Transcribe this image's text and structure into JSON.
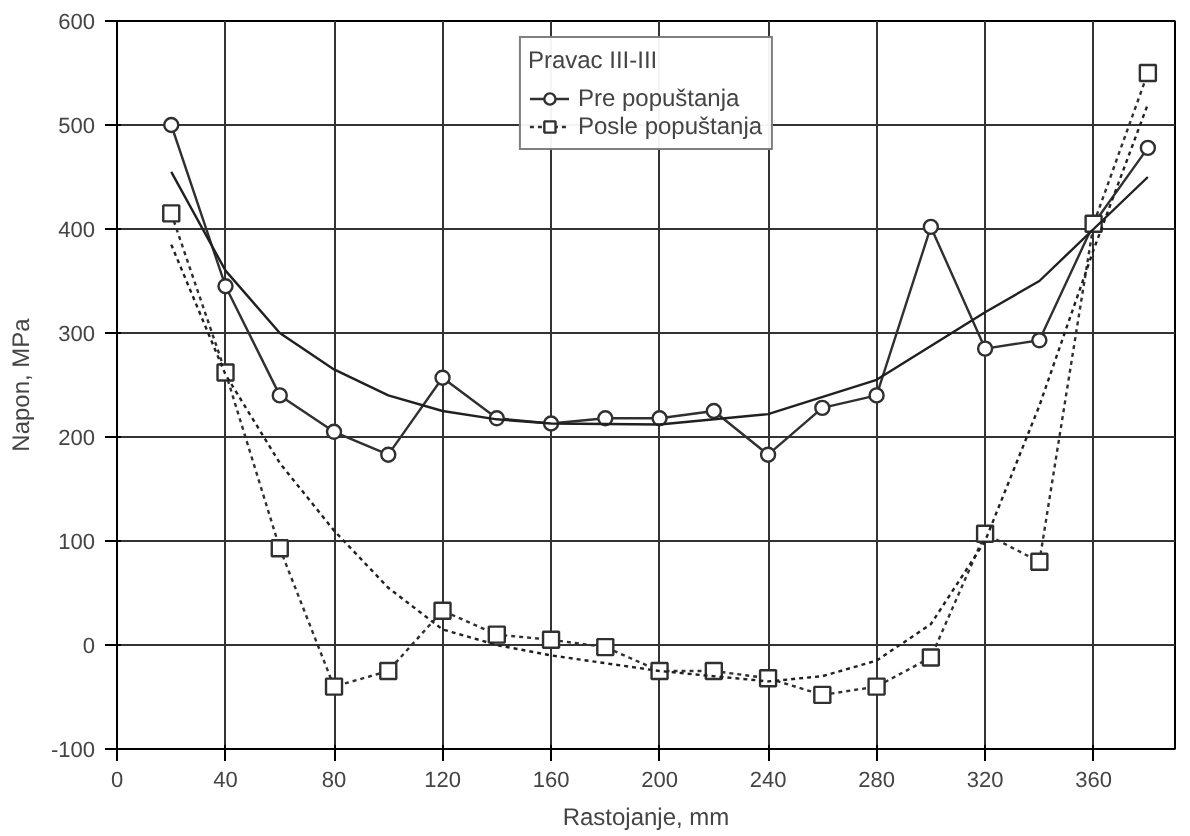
{
  "chart_data": {
    "type": "line",
    "xlabel": "Rastojanje, mm",
    "ylabel": "Napon, MPa",
    "legend_title": "Pravac III-III",
    "xlim": [
      0,
      390
    ],
    "ylim": [
      -100,
      600
    ],
    "xticks": [
      0,
      40,
      80,
      120,
      160,
      200,
      240,
      280,
      320,
      360
    ],
    "yticks": [
      -100,
      0,
      100,
      200,
      300,
      400,
      500,
      600
    ],
    "grid": true,
    "legend": "top",
    "x": [
      20,
      40,
      60,
      80,
      100,
      120,
      140,
      160,
      180,
      200,
      220,
      240,
      260,
      280,
      300,
      320,
      340,
      360,
      380
    ],
    "series": [
      {
        "name": "Pre popuštanja",
        "color": "#303030",
        "marker": "circle",
        "line_style": "solid",
        "values": [
          500,
          345,
          240,
          205,
          183,
          257,
          218,
          213,
          218,
          218,
          225,
          183,
          228,
          240,
          402,
          285,
          293,
          405,
          478
        ]
      },
      {
        "name": "Posle popuštanja",
        "color": "#303030",
        "marker": "square",
        "line_style": "dotted",
        "values": [
          415,
          262,
          93,
          -40,
          -25,
          33,
          10,
          5,
          -2,
          -25,
          -25,
          -32,
          -48,
          -40,
          -12,
          107,
          80,
          405,
          550
        ]
      },
      {
        "color": "#202020",
        "marker": "none",
        "line_style": "solid",
        "x": [
          20,
          40,
          60,
          80,
          100,
          120,
          140,
          160,
          200,
          240,
          280,
          320,
          340,
          360,
          380
        ],
        "values": [
          455,
          360,
          300,
          265,
          240,
          225,
          217,
          213,
          212,
          222,
          255,
          320,
          350,
          400,
          450
        ]
      },
      {
        "color": "#202020",
        "marker": "none",
        "line_style": "dotted",
        "x": [
          20,
          40,
          60,
          80,
          100,
          120,
          140,
          160,
          200,
          240,
          260,
          280,
          300,
          320,
          340,
          360,
          380
        ],
        "values": [
          385,
          260,
          175,
          110,
          55,
          15,
          0,
          -10,
          -25,
          -35,
          -30,
          -15,
          20,
          100,
          230,
          380,
          520
        ]
      }
    ]
  }
}
